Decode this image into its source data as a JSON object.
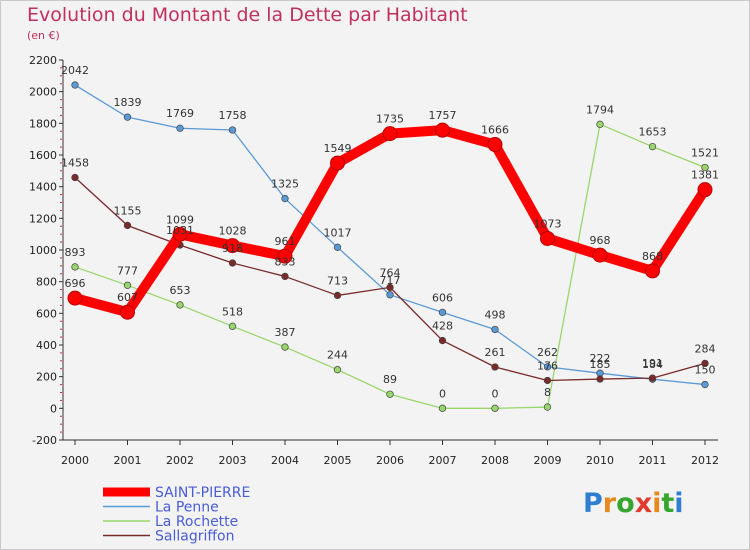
{
  "title": "Evolution du Montant de la Dette par Habitant",
  "unit": "(en €)",
  "logo": {
    "letters": [
      "P",
      "r",
      "o",
      "x",
      "i",
      "t",
      "i"
    ],
    "colors": [
      "#2f7fd0",
      "#e8891d",
      "#37a52e",
      "#e03a2f",
      "#e8891d",
      "#37a52e",
      "#2f7fd0"
    ]
  },
  "chart_data": {
    "type": "line",
    "title": "Evolution du Montant de la Dette par Habitant",
    "subtitle": "(en €)",
    "xlabel": "",
    "ylabel": "",
    "x": [
      "2000",
      "2001",
      "2002",
      "2003",
      "2004",
      "2005",
      "2006",
      "2007",
      "2008",
      "2009",
      "2010",
      "2011",
      "2012"
    ],
    "yticks": [
      "-200",
      "0",
      "200",
      "400",
      "600",
      "800",
      "1000",
      "1200",
      "1400",
      "1600",
      "1800",
      "2000",
      "2200"
    ],
    "ylim": [
      -200,
      2200
    ],
    "grid": false,
    "legend_position": "bottom-left",
    "series": [
      {
        "name": "SAINT-PIERRE",
        "color": "#ff0000",
        "values": [
          696,
          607,
          1099,
          1028,
          961,
          1549,
          1735,
          1757,
          1666,
          1073,
          968,
          868,
          1381
        ],
        "labels": [
          "696",
          "607",
          "1099",
          "1028",
          "961",
          "1549",
          "1735",
          "1757",
          "1666",
          "1073",
          "968",
          "868",
          "1381"
        ]
      },
      {
        "name": "La Penne",
        "color": "#5a9ad6",
        "values": [
          2042,
          1839,
          1769,
          1758,
          1325,
          1017,
          717,
          606,
          498,
          262,
          222,
          184,
          150
        ],
        "labels": [
          "2042",
          "1839",
          "1769",
          "1758",
          "1325",
          "1017",
          "717",
          "606",
          "498",
          "262",
          "222",
          "184",
          "150"
        ]
      },
      {
        "name": "La Rochette",
        "color": "#99d66b",
        "values": [
          893,
          777,
          653,
          518,
          387,
          244,
          89,
          0,
          0,
          8,
          1794,
          1653,
          1521
        ],
        "labels": [
          "893",
          "777",
          "653",
          "518",
          "387",
          "244",
          "89",
          "0",
          "0",
          "8",
          "1794",
          "1653",
          "1521"
        ]
      },
      {
        "name": "Sallagriffon",
        "color": "#7a2a2a",
        "values": [
          1458,
          1155,
          1031,
          918,
          833,
          713,
          764,
          428,
          261,
          176,
          185,
          191,
          284
        ],
        "labels": [
          "1458",
          "1155",
          "1031",
          "918",
          "833",
          "713",
          "764",
          "428",
          "261",
          "176",
          "185",
          "191",
          "284"
        ]
      }
    ]
  }
}
